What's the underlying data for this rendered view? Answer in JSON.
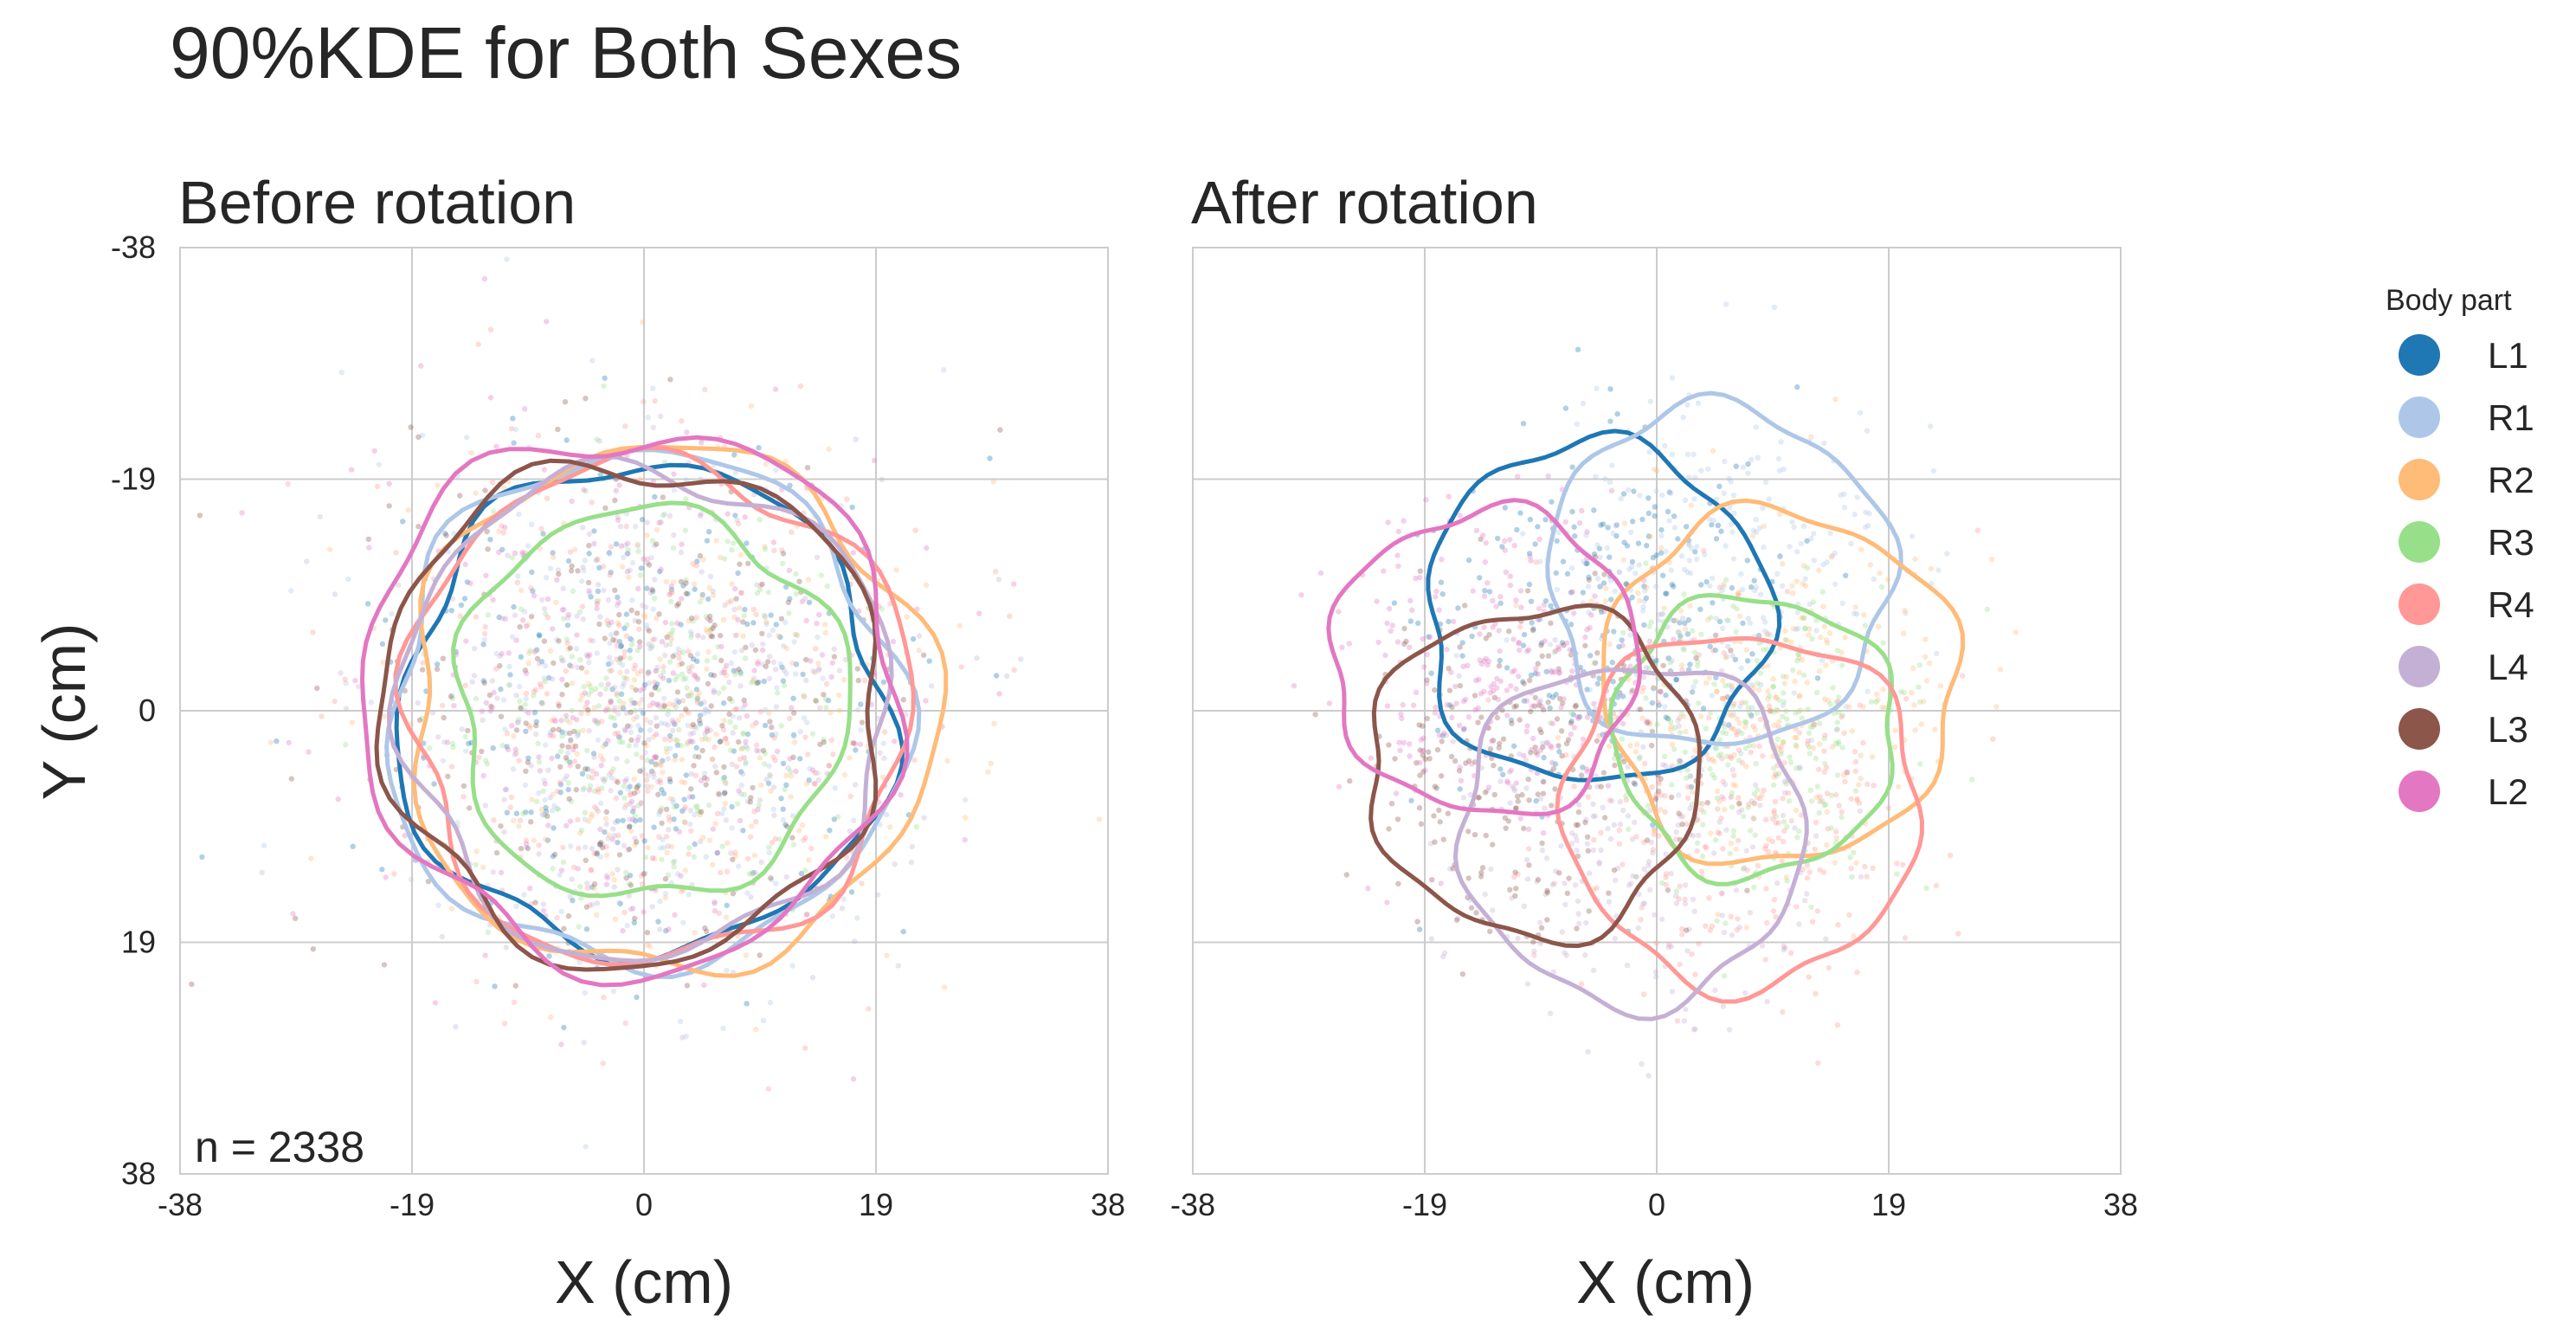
{
  "chart_data": {
    "type": "scatter",
    "title": "90%KDE for Both Sexes",
    "annotation": "n = 2338",
    "xlabel": "X (cm)",
    "ylabel": "Y (cm)",
    "xlim": [
      -38,
      38
    ],
    "ylim": [
      38,
      -38
    ],
    "ticks": [
      -38,
      -19,
      0,
      19,
      38
    ],
    "tick_labels": [
      "-38",
      "-19",
      "0",
      "19",
      "38"
    ],
    "grid": true,
    "legend": {
      "title": "Body part",
      "position": "right",
      "entries": [
        {
          "name": "L1",
          "color": "#1f77b4"
        },
        {
          "name": "R1",
          "color": "#aec7e8"
        },
        {
          "name": "R2",
          "color": "#ffbb78"
        },
        {
          "name": "R3",
          "color": "#98df8a"
        },
        {
          "name": "R4",
          "color": "#ff9896"
        },
        {
          "name": "L4",
          "color": "#c5b0d5"
        },
        {
          "name": "L3",
          "color": "#8c564b"
        },
        {
          "name": "L2",
          "color": "#e377c2"
        }
      ]
    },
    "panels": [
      {
        "title": "Before rotation",
        "series": [
          {
            "name": "L1",
            "center": [
              0,
              0
            ],
            "radius": 20
          },
          {
            "name": "R1",
            "center": [
              0,
              0
            ],
            "radius": 21
          },
          {
            "name": "R2",
            "center": [
              2,
              0
            ],
            "radius": 21.5
          },
          {
            "name": "R3",
            "center": [
              0.5,
              -0.5
            ],
            "radius": 16
          },
          {
            "name": "R4",
            "center": [
              1,
              0
            ],
            "radius": 20.5
          },
          {
            "name": "L4",
            "center": [
              0,
              0
            ],
            "radius": 20
          },
          {
            "name": "L3",
            "center": [
              -1,
              0
            ],
            "radius": 20.5
          },
          {
            "name": "L2",
            "center": [
              -1,
              -1
            ],
            "radius": 22
          }
        ]
      },
      {
        "title": "After rotation",
        "series": [
          {
            "name": "L1",
            "center": [
              -5,
              -8
            ],
            "radius": 14
          },
          {
            "name": "R1",
            "center": [
              5,
              -11
            ],
            "radius": 14
          },
          {
            "name": "R2",
            "center": [
              10,
              -2
            ],
            "radius": 14.5
          },
          {
            "name": "R3",
            "center": [
              8,
              2
            ],
            "radius": 11.5
          },
          {
            "name": "R4",
            "center": [
              7,
              8
            ],
            "radius": 14.5
          },
          {
            "name": "L4",
            "center": [
              -2,
              10
            ],
            "radius": 14
          },
          {
            "name": "L3",
            "center": [
              -10,
              5
            ],
            "radius": 13.5
          },
          {
            "name": "L2",
            "center": [
              -14,
              -4
            ],
            "radius": 12.5
          }
        ]
      }
    ]
  }
}
